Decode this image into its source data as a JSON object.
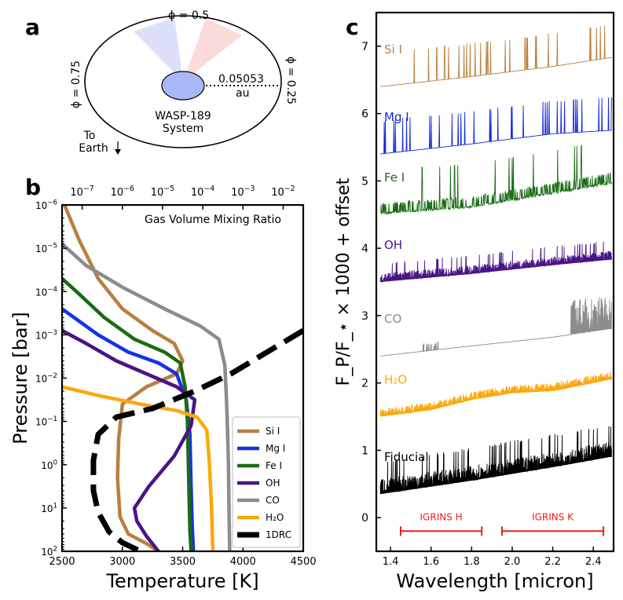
{
  "panels": {
    "a": {
      "letter": "a",
      "phase_top": "ϕ = 0.5",
      "phase_left": "ϕ = 0.75",
      "phase_right": "ϕ = 0.25",
      "distance_value": "0.05053",
      "distance_unit": "au",
      "system_name_1": "WASP-189",
      "system_name_2": "System",
      "earth_label_1": "To",
      "earth_label_2": "Earth",
      "colors": {
        "planet": "#a8b8f8",
        "wedge_blue": "#dde0fa",
        "wedge_red": "#fbdada"
      }
    },
    "b": {
      "letter": "b"
    },
    "c": {
      "letter": "c"
    }
  },
  "chart_data": [
    {
      "type": "line",
      "title": "",
      "annotation": "Gas Volume Mixing Ratio",
      "xlabel": "Temperature [K]",
      "ylabel": "Pressure [bar]",
      "xlim": [
        2500,
        4500
      ],
      "ylim_log": [
        -6,
        2
      ],
      "y_scale": "log",
      "y_inverted": true,
      "x_ticks": [
        2500,
        3000,
        3500,
        4000,
        4500
      ],
      "x_tick_labels": [
        "2500",
        "3000",
        "3500",
        "4000",
        "4500"
      ],
      "y_ticks_exp": [
        -6,
        -5,
        -4,
        -3,
        -2,
        -1,
        0,
        1,
        2
      ],
      "y_tick_labels": [
        "10^-6",
        "10^-5",
        "10^-4",
        "10^-3",
        "10^-2",
        "10^-1",
        "10^0",
        "10^1",
        "10^2"
      ],
      "top_axis": {
        "label": "Gas Volume Mixing Ratio",
        "range_log": [
          -7.5,
          -1.5
        ],
        "ticks_exp": [
          -7,
          -6,
          -5,
          -4,
          -3,
          -2
        ]
      },
      "legend_position": "lower-right",
      "series": [
        {
          "name": "Si I",
          "color": "#b97f40",
          "points": [
            [
              2520,
              -6
            ],
            [
              2640,
              -5.2
            ],
            [
              2800,
              -4.3
            ],
            [
              3000,
              -3.6
            ],
            [
              3250,
              -3.1
            ],
            [
              3430,
              -2.8
            ],
            [
              3500,
              -2.4
            ],
            [
              3450,
              -2.1
            ],
            [
              3200,
              -1.8
            ],
            [
              3000,
              -1.4
            ],
            [
              2970,
              -0.6
            ],
            [
              2960,
              0.3
            ],
            [
              2980,
              1.2
            ],
            [
              3050,
              1.6
            ],
            [
              3200,
              1.82
            ],
            [
              3300,
              2
            ]
          ]
        },
        {
          "name": "Mg I",
          "color": "#1432e6",
          "points": [
            [
              2500,
              -3.6
            ],
            [
              2600,
              -3.4
            ],
            [
              2800,
              -3.0
            ],
            [
              3050,
              -2.6
            ],
            [
              3300,
              -2.35
            ],
            [
              3450,
              -2.1
            ],
            [
              3530,
              -1.5
            ],
            [
              3560,
              -0.7
            ],
            [
              3570,
              0.5
            ],
            [
              3580,
              1.5
            ],
            [
              3590,
              2
            ]
          ]
        },
        {
          "name": "Fe I",
          "color": "#1a6b14",
          "points": [
            [
              2500,
              -4.3
            ],
            [
              2620,
              -4.0
            ],
            [
              2850,
              -3.4
            ],
            [
              3100,
              -2.9
            ],
            [
              3350,
              -2.6
            ],
            [
              3480,
              -2.35
            ],
            [
              3520,
              -1.8
            ],
            [
              3540,
              -1.0
            ],
            [
              3550,
              0.3
            ],
            [
              3560,
              1.5
            ],
            [
              3570,
              2
            ]
          ]
        },
        {
          "name": "OH",
          "color": "#4a1485",
          "points": [
            [
              2500,
              -3.1
            ],
            [
              2700,
              -2.8
            ],
            [
              2950,
              -2.4
            ],
            [
              3200,
              -2.1
            ],
            [
              3450,
              -1.8
            ],
            [
              3600,
              -1.5
            ],
            [
              3570,
              -0.9
            ],
            [
              3430,
              -0.2
            ],
            [
              3220,
              0.5
            ],
            [
              3100,
              1.0
            ],
            [
              3120,
              1.3
            ],
            [
              3200,
              1.65
            ],
            [
              3300,
              2
            ]
          ]
        },
        {
          "name": "CO",
          "color": "#8c8c8c",
          "points": [
            [
              2500,
              -5.1
            ],
            [
              2700,
              -4.6
            ],
            [
              3000,
              -4.1
            ],
            [
              3350,
              -3.6
            ],
            [
              3650,
              -3.2
            ],
            [
              3800,
              -2.9
            ],
            [
              3850,
              -2.3
            ],
            [
              3860,
              -1.7
            ],
            [
              3870,
              -1.0
            ],
            [
              3880,
              0
            ],
            [
              3885,
              1.2
            ],
            [
              3890,
              2
            ]
          ]
        },
        {
          "name": "H₂O",
          "color": "#fba80c",
          "points": [
            [
              2500,
              -1.8
            ],
            [
              2800,
              -1.6
            ],
            [
              3150,
              -1.4
            ],
            [
              3450,
              -1.25
            ],
            [
              3620,
              -1.1
            ],
            [
              3700,
              -0.8
            ],
            [
              3720,
              -0.1
            ],
            [
              3740,
              1.0
            ],
            [
              3750,
              2
            ]
          ]
        },
        {
          "name": "1DRC",
          "color": "#000000",
          "dashed": true,
          "points": [
            [
              4500,
              -3.1
            ],
            [
              4200,
              -2.6
            ],
            [
              3900,
              -2.1
            ],
            [
              3600,
              -1.7
            ],
            [
              3250,
              -1.3
            ],
            [
              2950,
              -1.1
            ],
            [
              2800,
              -0.7
            ],
            [
              2760,
              -0.1
            ],
            [
              2760,
              0.6
            ],
            [
              2800,
              1.1
            ],
            [
              2890,
              1.55
            ],
            [
              3000,
              1.8
            ],
            [
              3150,
              2
            ]
          ]
        }
      ]
    },
    {
      "type": "line",
      "title": "",
      "xlabel": "Wavelength [micron]",
      "ylabel": "F_P/F_⋆ × 1000 + offset",
      "xlim": [
        1.33,
        2.5
      ],
      "ylim": [
        -0.5,
        7.5
      ],
      "x_ticks": [
        1.4,
        1.6,
        1.8,
        2.0,
        2.2,
        2.4
      ],
      "x_tick_labels": [
        "1.4",
        "1.6",
        "1.8",
        "2.0",
        "2.2",
        "2.4"
      ],
      "y_ticks": [
        0,
        1,
        2,
        3,
        4,
        5,
        6,
        7
      ],
      "y_tick_labels": [
        "0",
        "1",
        "2",
        "3",
        "4",
        "5",
        "6",
        "7"
      ],
      "series": [
        {
          "name": "Si I",
          "label": "Si I",
          "color": "#b97f40",
          "continuum": [
            [
              1.35,
              6.4
            ],
            [
              1.8,
              6.55
            ],
            [
              2.2,
              6.7
            ],
            [
              2.48,
              6.83
            ]
          ],
          "line_strength": 0.2,
          "density": "sparse"
        },
        {
          "name": "Mg I",
          "label": "Mg I",
          "color": "#1428dc",
          "continuum": [
            [
              1.35,
              5.4
            ],
            [
              1.8,
              5.55
            ],
            [
              2.2,
              5.7
            ],
            [
              2.48,
              5.75
            ]
          ],
          "line_strength": 0.2,
          "density": "sparse"
        },
        {
          "name": "Fe I",
          "label": "Fe I",
          "color": "#1a6b14",
          "continuum": [
            [
              1.35,
              4.5
            ],
            [
              1.8,
              4.6
            ],
            [
              2.2,
              4.8
            ],
            [
              2.48,
              4.95
            ]
          ],
          "line_strength": 0.3,
          "density": "medium"
        },
        {
          "name": "OH",
          "label": "OH",
          "color": "#4a1485",
          "continuum": [
            [
              1.35,
              3.5
            ],
            [
              1.8,
              3.62
            ],
            [
              2.2,
              3.75
            ],
            [
              2.48,
              3.83
            ]
          ],
          "line_strength": 0.2,
          "density": "dense"
        },
        {
          "name": "CO",
          "label": "CO",
          "color": "#8c8c8c",
          "continuum": [
            [
              1.35,
              2.4
            ],
            [
              1.8,
              2.55
            ],
            [
              2.2,
              2.68
            ],
            [
              2.48,
              2.8
            ]
          ],
          "line_strength": 0.4,
          "density": "co"
        },
        {
          "name": "H2O",
          "label": "H₂O",
          "color": "#fba80c",
          "continuum": [
            [
              1.35,
              1.5
            ],
            [
              1.6,
              1.6
            ],
            [
              1.8,
              1.75
            ],
            [
              2.0,
              1.85
            ],
            [
              2.2,
              1.88
            ],
            [
              2.48,
              2.05
            ]
          ],
          "line_strength": 0.12,
          "density": "band"
        },
        {
          "name": "Fiducial",
          "label": "Fiducial",
          "color": "#000000",
          "continuum": [
            [
              1.35,
              0.35
            ],
            [
              1.8,
              0.55
            ],
            [
              2.2,
              0.75
            ],
            [
              2.48,
              0.9
            ]
          ],
          "line_strength": 0.35,
          "density": "dense"
        }
      ],
      "annotations": [
        {
          "label": "IGRINS H",
          "x_range": [
            1.45,
            1.85
          ],
          "y": -0.2,
          "color": "#e8201c"
        },
        {
          "label": "IGRINS K",
          "x_range": [
            1.95,
            2.45
          ],
          "y": -0.2,
          "color": "#e8201c"
        }
      ]
    }
  ]
}
